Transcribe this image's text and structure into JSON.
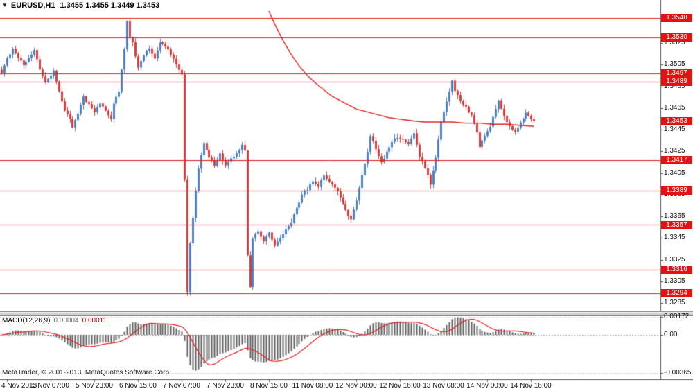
{
  "title_bar": {
    "dropdown_icon": "▼",
    "symbol_period": "EURUSD,H1",
    "ohlc": "1.3455 1.3455 1.3449 1.3453"
  },
  "footer": {
    "copyright": "MetaTrader, © 2001-2013, MetaQuotes Software Corp."
  },
  "colors": {
    "bull": "#4f81bd",
    "bear": "#d23f3f",
    "line_red": "#e01f1f",
    "tag_red": "#e11212",
    "histogram": "#5f5f5f"
  },
  "chart_data": {
    "type": "candlestick",
    "symbol": "EURUSD",
    "timeframe": "H1",
    "current_ohlc": {
      "open": 1.3455,
      "high": 1.3455,
      "low": 1.3449,
      "close": 1.3453
    },
    "price_axis_ticks": [
      1.3525,
      1.3505,
      1.3485,
      1.3465,
      1.3445,
      1.3425,
      1.3405,
      1.3385,
      1.3365,
      1.3345,
      1.3325,
      1.3305,
      1.3285
    ],
    "horizontal_lines": [
      1.3548,
      1.353,
      1.3497,
      1.3489,
      1.3417,
      1.3389,
      1.3357,
      1.3316,
      1.3294
    ],
    "current_price_line": 1.3453,
    "time_labels": [
      "4 Nov 2013",
      "5 Nov 07:00",
      "5 Nov 23:00",
      "6 Nov 15:00",
      "7 Nov 07:00",
      "7 Nov 23:00",
      "8 Nov 15:00",
      "11 Nov 08:00",
      "12 Nov 00:00",
      "12 Nov 16:00",
      "13 Nov 08:00",
      "14 Nov 00:00",
      "14 Nov 16:00"
    ],
    "price_path_anchors": [
      [
        0,
        1.3498
      ],
      [
        2,
        1.351
      ],
      [
        4,
        1.352
      ],
      [
        6,
        1.3512
      ],
      [
        8,
        1.3505
      ],
      [
        10,
        1.3512
      ],
      [
        12,
        1.3518
      ],
      [
        14,
        1.35
      ],
      [
        16,
        1.3489
      ],
      [
        18,
        1.3495
      ],
      [
        19,
        1.35
      ],
      [
        21,
        1.348
      ],
      [
        23,
        1.3462
      ],
      [
        25,
        1.3455
      ],
      [
        26,
        1.3448
      ],
      [
        28,
        1.346
      ],
      [
        30,
        1.3475
      ],
      [
        32,
        1.3468
      ],
      [
        34,
        1.3462
      ],
      [
        36,
        1.347
      ],
      [
        38,
        1.3462
      ],
      [
        40,
        1.3455
      ],
      [
        41,
        1.347
      ],
      [
        43,
        1.348
      ],
      [
        44,
        1.35
      ],
      [
        45,
        1.352
      ],
      [
        46,
        1.3545
      ],
      [
        47,
        1.353
      ],
      [
        48,
        1.3525
      ],
      [
        50,
        1.3502
      ],
      [
        52,
        1.3514
      ],
      [
        54,
        1.352
      ],
      [
        56,
        1.351
      ],
      [
        58,
        1.3525
      ],
      [
        60,
        1.3522
      ],
      [
        62,
        1.3515
      ],
      [
        64,
        1.3505
      ],
      [
        66,
        1.3495
      ],
      [
        67,
        1.34
      ],
      [
        68,
        1.3296
      ],
      [
        69,
        1.334
      ],
      [
        71,
        1.3388
      ],
      [
        72,
        1.341
      ],
      [
        74,
        1.3432
      ],
      [
        76,
        1.342
      ],
      [
        78,
        1.3412
      ],
      [
        80,
        1.3422
      ],
      [
        82,
        1.3412
      ],
      [
        84,
        1.3418
      ],
      [
        86,
        1.3422
      ],
      [
        88,
        1.3432
      ],
      [
        89,
        1.3425
      ],
      [
        90,
        1.333
      ],
      [
        91,
        1.33
      ],
      [
        92,
        1.3345
      ],
      [
        94,
        1.3352
      ],
      [
        96,
        1.3342
      ],
      [
        98,
        1.335
      ],
      [
        100,
        1.3338
      ],
      [
        102,
        1.3345
      ],
      [
        104,
        1.3352
      ],
      [
        106,
        1.336
      ],
      [
        108,
        1.3372
      ],
      [
        110,
        1.3385
      ],
      [
        112,
        1.339
      ],
      [
        114,
        1.3398
      ],
      [
        116,
        1.3392
      ],
      [
        118,
        1.3403
      ],
      [
        120,
        1.3398
      ],
      [
        122,
        1.3392
      ],
      [
        124,
        1.3382
      ],
      [
        126,
        1.337
      ],
      [
        128,
        1.3362
      ],
      [
        130,
        1.338
      ],
      [
        132,
        1.3402
      ],
      [
        134,
        1.3425
      ],
      [
        135,
        1.344
      ],
      [
        137,
        1.3428
      ],
      [
        139,
        1.3414
      ],
      [
        141,
        1.3424
      ],
      [
        143,
        1.3434
      ],
      [
        145,
        1.3438
      ],
      [
        147,
        1.3436
      ],
      [
        149,
        1.3432
      ],
      [
        151,
        1.3442
      ],
      [
        153,
        1.342
      ],
      [
        155,
        1.341
      ],
      [
        157,
        1.3395
      ],
      [
        159,
        1.342
      ],
      [
        161,
        1.3452
      ],
      [
        163,
        1.347
      ],
      [
        165,
        1.349
      ],
      [
        166,
        1.348
      ],
      [
        168,
        1.3472
      ],
      [
        170,
        1.3465
      ],
      [
        172,
        1.3458
      ],
      [
        174,
        1.3442
      ],
      [
        175,
        1.3428
      ],
      [
        177,
        1.344
      ],
      [
        179,
        1.3448
      ],
      [
        181,
        1.3465
      ],
      [
        182,
        1.3472
      ],
      [
        184,
        1.3458
      ],
      [
        186,
        1.3448
      ],
      [
        188,
        1.3442
      ],
      [
        190,
        1.3452
      ],
      [
        192,
        1.346
      ],
      [
        194,
        1.3455
      ],
      [
        195,
        1.3453
      ]
    ],
    "ma_line_points": [
      [
        97,
        1.356
      ],
      [
        100,
        1.3543
      ],
      [
        103,
        1.3528
      ],
      [
        106,
        1.3515
      ],
      [
        109,
        1.3504
      ],
      [
        112,
        1.3495
      ],
      [
        115,
        1.3488
      ],
      [
        118,
        1.3482
      ],
      [
        121,
        1.3476
      ],
      [
        124,
        1.3472
      ],
      [
        127,
        1.3468
      ],
      [
        130,
        1.3464
      ],
      [
        133,
        1.3462
      ],
      [
        136,
        1.346
      ],
      [
        139,
        1.3458
      ],
      [
        142,
        1.3456
      ],
      [
        145,
        1.3455
      ],
      [
        148,
        1.3454
      ],
      [
        151,
        1.3453
      ],
      [
        155,
        1.3452
      ],
      [
        160,
        1.3452
      ],
      [
        165,
        1.3452
      ],
      [
        170,
        1.3451
      ],
      [
        175,
        1.3451
      ],
      [
        180,
        1.345
      ],
      [
        185,
        1.345
      ],
      [
        190,
        1.3449
      ],
      [
        195,
        1.3448
      ]
    ],
    "macd": {
      "label": "MACD(12,26,9)",
      "fast": 12,
      "slow": 26,
      "signal": 9,
      "value_main": "0.00004",
      "value_signal": "0.00011",
      "axis_labels": [
        "0.00172",
        "0.00",
        "-0.00365"
      ],
      "axis_values": [
        0.00172,
        0,
        -0.00365
      ]
    }
  }
}
